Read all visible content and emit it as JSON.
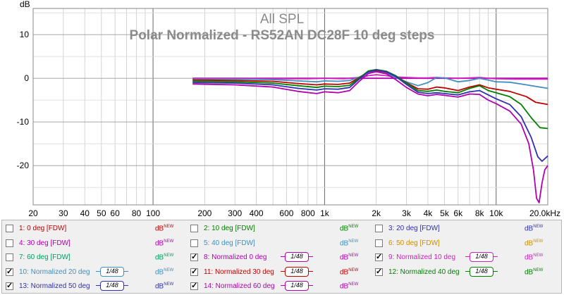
{
  "chart_data": {
    "type": "line",
    "title": "All SPL",
    "subtitle": "Polar Normalized - RS52AN DC28F 10 deg steps",
    "ylabel": "dB",
    "xlim": [
      20,
      20000
    ],
    "ylim": [
      -29,
      16
    ],
    "x_scale": "log",
    "x_ticks": [
      20,
      30,
      40,
      50,
      60,
      80,
      100,
      200,
      300,
      400,
      600,
      800,
      1000,
      2000,
      3000,
      4000,
      5000,
      6000,
      8000,
      10000,
      20000
    ],
    "x_tick_labels": [
      "20",
      "30",
      "40",
      "50",
      "60",
      "80",
      "100",
      "200",
      "300",
      "400",
      "600",
      "800",
      "1k",
      "2k",
      "3k",
      "4k",
      "5k",
      "6k",
      "8k",
      "10k",
      "20.0kHz"
    ],
    "y_ticks": [
      10,
      0,
      -10,
      -20
    ],
    "y_tick_labels": [
      "10",
      "0",
      "-10",
      "-20"
    ],
    "grid": true,
    "series": [
      {
        "name": "8: Normalized 0 deg",
        "color": "#b000b0",
        "x": [
          170,
          500,
          1000,
          1500,
          2000,
          3000,
          4000,
          6000,
          8000,
          10000,
          15000,
          20000
        ],
        "y": [
          0,
          0,
          0,
          0,
          0,
          0,
          0,
          0,
          0,
          0,
          0,
          0
        ]
      },
      {
        "name": "9: Normalized 10 deg",
        "color": "#d020c0",
        "x": [
          170,
          300,
          500,
          800,
          1000,
          1300,
          1600,
          1800,
          2000,
          2300,
          2600,
          3000,
          3500,
          4000,
          4500,
          5000,
          6000,
          7000,
          8000,
          9000,
          10000,
          13000,
          16000,
          20000
        ],
        "y": [
          0,
          0,
          -0.1,
          -0.1,
          0,
          -0.1,
          0.2,
          0.6,
          0.8,
          0.6,
          0.3,
          0.2,
          0.1,
          0.1,
          0.2,
          0.1,
          0,
          0.1,
          0.2,
          0,
          -0.1,
          -0.2,
          -0.2,
          -0.2
        ]
      },
      {
        "name": "10: Normalized 20 deg",
        "color": "#4090c0",
        "x": [
          170,
          300,
          500,
          700,
          900,
          1000,
          1200,
          1400,
          1600,
          1800,
          2000,
          2300,
          2600,
          3000,
          3500,
          4000,
          4500,
          5000,
          6000,
          7000,
          8000,
          9000,
          10000,
          12000,
          15000,
          20000
        ],
        "y": [
          -0.2,
          -0.2,
          -0.3,
          -0.6,
          -0.8,
          -0.6,
          -0.7,
          -0.5,
          0.3,
          1.4,
          1.6,
          1.2,
          0.2,
          -0.8,
          -1.7,
          -1.0,
          0.2,
          0.1,
          -0.8,
          -0.5,
          0,
          -0.4,
          -0.8,
          -0.9,
          -1.5,
          -2.3
        ]
      },
      {
        "name": "11: Normalized 30 deg",
        "color": "#c00000",
        "x": [
          170,
          300,
          500,
          700,
          900,
          1000,
          1200,
          1400,
          1600,
          1800,
          2000,
          2300,
          2600,
          3000,
          3500,
          4000,
          4500,
          5000,
          6000,
          7000,
          8000,
          9000,
          10000,
          12000,
          15000,
          17000,
          20000
        ],
        "y": [
          -0.4,
          -0.5,
          -0.7,
          -1.2,
          -1.5,
          -1.3,
          -1.4,
          -1.1,
          0.2,
          1.5,
          1.8,
          1.4,
          0.5,
          -1.0,
          -2.4,
          -2.5,
          -2.0,
          -2.2,
          -2.8,
          -2.0,
          -1.5,
          -2.2,
          -2.5,
          -3.0,
          -4.2,
          -5.5,
          -6.0
        ]
      },
      {
        "name": "12: Normalized 40 deg",
        "color": "#008000",
        "x": [
          170,
          300,
          500,
          700,
          900,
          1000,
          1200,
          1400,
          1600,
          1800,
          2000,
          2300,
          2600,
          3000,
          3500,
          4000,
          4500,
          5000,
          6000,
          7000,
          8000,
          9000,
          10000,
          12000,
          14000,
          16000,
          18000,
          20000
        ],
        "y": [
          -0.7,
          -0.8,
          -1.1,
          -1.7,
          -2.1,
          -1.8,
          -1.9,
          -1.6,
          0.1,
          1.7,
          2.0,
          1.6,
          0.6,
          -1.1,
          -2.8,
          -3.0,
          -2.7,
          -3.0,
          -3.3,
          -2.3,
          -1.7,
          -2.8,
          -3.3,
          -4.2,
          -6.0,
          -9.0,
          -11.3,
          -11.5
        ]
      },
      {
        "name": "13: Normalized 50 deg",
        "color": "#3030b0",
        "x": [
          170,
          300,
          500,
          700,
          900,
          1000,
          1200,
          1400,
          1600,
          1800,
          2000,
          2300,
          2600,
          3000,
          3500,
          4000,
          4500,
          5000,
          6000,
          7000,
          8000,
          9000,
          10000,
          12000,
          14000,
          16000,
          17500,
          18500,
          20000
        ],
        "y": [
          -1.0,
          -1.1,
          -1.5,
          -2.3,
          -2.7,
          -2.4,
          -2.5,
          -2.1,
          -0.1,
          1.5,
          1.9,
          1.5,
          0.4,
          -1.4,
          -3.2,
          -3.5,
          -3.3,
          -3.5,
          -3.8,
          -3.1,
          -2.8,
          -3.8,
          -4.7,
          -6.0,
          -8.8,
          -13.5,
          -18.0,
          -19.0,
          -17.8
        ]
      },
      {
        "name": "14: Normalized 60 deg",
        "color": "#b000b0",
        "x": [
          170,
          300,
          500,
          700,
          900,
          1000,
          1200,
          1400,
          1600,
          1800,
          2000,
          2300,
          2600,
          3000,
          3500,
          4000,
          4500,
          5000,
          6000,
          7000,
          8000,
          9000,
          10000,
          12000,
          14000,
          15500,
          16500,
          17200,
          17800,
          18500,
          19200,
          20000
        ],
        "y": [
          -1.3,
          -1.5,
          -2.0,
          -3.0,
          -3.5,
          -3.1,
          -3.3,
          -2.8,
          -0.6,
          1.1,
          1.5,
          1.0,
          -0.3,
          -2.1,
          -3.6,
          -4.0,
          -3.7,
          -3.9,
          -4.3,
          -3.6,
          -3.7,
          -5.0,
          -5.8,
          -7.5,
          -10.5,
          -15.0,
          -21.0,
          -27.5,
          -28.5,
          -24.0,
          -21.0,
          -20.0
        ]
      }
    ]
  },
  "legend": [
    {
      "label": "1: 0 deg [FDW]",
      "color": "#c00000",
      "checked": false,
      "smoothing": ""
    },
    {
      "label": "2: 10 deg [FDW]",
      "color": "#008000",
      "checked": false,
      "smoothing": ""
    },
    {
      "label": "3: 20 deg [FDW]",
      "color": "#3030b0",
      "checked": false,
      "smoothing": ""
    },
    {
      "label": "4: 30 deg [FDW]",
      "color": "#b000b0",
      "checked": false,
      "smoothing": ""
    },
    {
      "label": "5: 40 deg [FDW]",
      "color": "#4090c0",
      "checked": false,
      "smoothing": ""
    },
    {
      "label": "6: 50 deg [FDW]",
      "color": "#c89000",
      "checked": false,
      "smoothing": ""
    },
    {
      "label": "7: 60 deg [FDW]",
      "color": "#00a060",
      "checked": false,
      "smoothing": ""
    },
    {
      "label": "8: Normalized 0 deg",
      "color": "#b000b0",
      "checked": true,
      "smoothing": "1/48"
    },
    {
      "label": "9: Normalized 10 deg",
      "color": "#d020c0",
      "checked": true,
      "smoothing": "1/48"
    },
    {
      "label": "10: Normalized 20 deg",
      "color": "#4090c0",
      "checked": true,
      "smoothing": "1/48"
    },
    {
      "label": "11: Normalized 30 deg",
      "color": "#c00000",
      "checked": true,
      "smoothing": "1/48"
    },
    {
      "label": "12: Normalized 40 deg",
      "color": "#008000",
      "checked": true,
      "smoothing": "1/48"
    },
    {
      "label": "13: Normalized 50 deg",
      "color": "#3030b0",
      "checked": true,
      "smoothing": "1/48"
    },
    {
      "label": "14: Normalized 60 deg",
      "color": "#b000b0",
      "checked": true,
      "smoothing": "1/48"
    }
  ],
  "db_label": "dB",
  "db_superscript": "NEW",
  "check_mark": "✓"
}
